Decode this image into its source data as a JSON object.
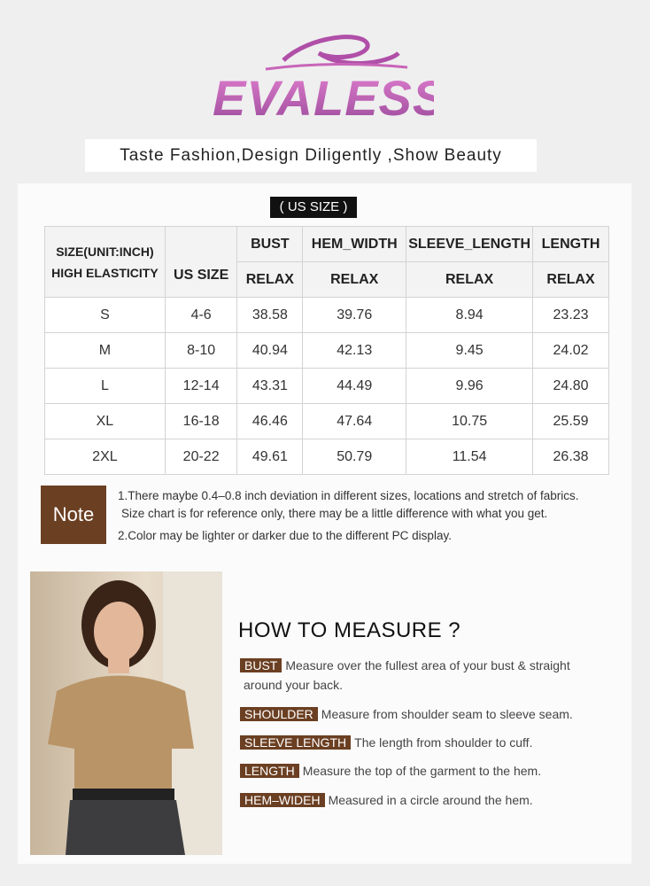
{
  "brand": {
    "name": "EVALESS",
    "tagline": "Taste Fashion,Design Diligently ,Show Beauty"
  },
  "size_badge": "( US SIZE )",
  "table": {
    "header_left": [
      "SIZE(UNIT:INCH)",
      "HIGH ELASTICITY"
    ],
    "us_size": "US SIZE",
    "columns": [
      "BUST",
      "HEM_WIDTH",
      "SLEEVE_LENGTH",
      "LENGTH"
    ],
    "fit": "RELAX",
    "rows": [
      [
        "S",
        "4-6",
        "38.58",
        "39.76",
        "8.94",
        "23.23"
      ],
      [
        "M",
        "8-10",
        "40.94",
        "42.13",
        "9.45",
        "24.02"
      ],
      [
        "L",
        "12-14",
        "43.31",
        "44.49",
        "9.96",
        "24.80"
      ],
      [
        "XL",
        "16-18",
        "46.46",
        "47.64",
        "10.75",
        "25.59"
      ],
      [
        "2XL",
        "20-22",
        "49.61",
        "50.79",
        "11.54",
        "26.38"
      ]
    ]
  },
  "note": {
    "label": "Note",
    "lines": [
      "1.There maybe 0.4–0.8 inch deviation in different sizes, locations and stretch of fabrics.",
      "Size chart is for reference only, there may be a little difference with what you get.",
      "2.Color may be lighter or darker due to the different PC display."
    ]
  },
  "how_to_measure": {
    "title": "HOW TO MEASURE ?",
    "items": [
      {
        "label": "BUST",
        "text": "Measure over the fullest area of your bust & straight",
        "text2": "around your back."
      },
      {
        "label": "SHOULDER",
        "text": "Measure from shoulder seam to sleeve seam."
      },
      {
        "label": "SLEEVE LENGTH",
        "text": "The length from shoulder to cuff."
      },
      {
        "label": "LENGTH",
        "text": "Measure the top of the garment to the hem."
      },
      {
        "label": "HEM–WIDEH",
        "text": "Measured in a circle around the hem."
      }
    ]
  },
  "colors": {
    "accent": "#6b3f22",
    "logo": "#c865b8"
  }
}
